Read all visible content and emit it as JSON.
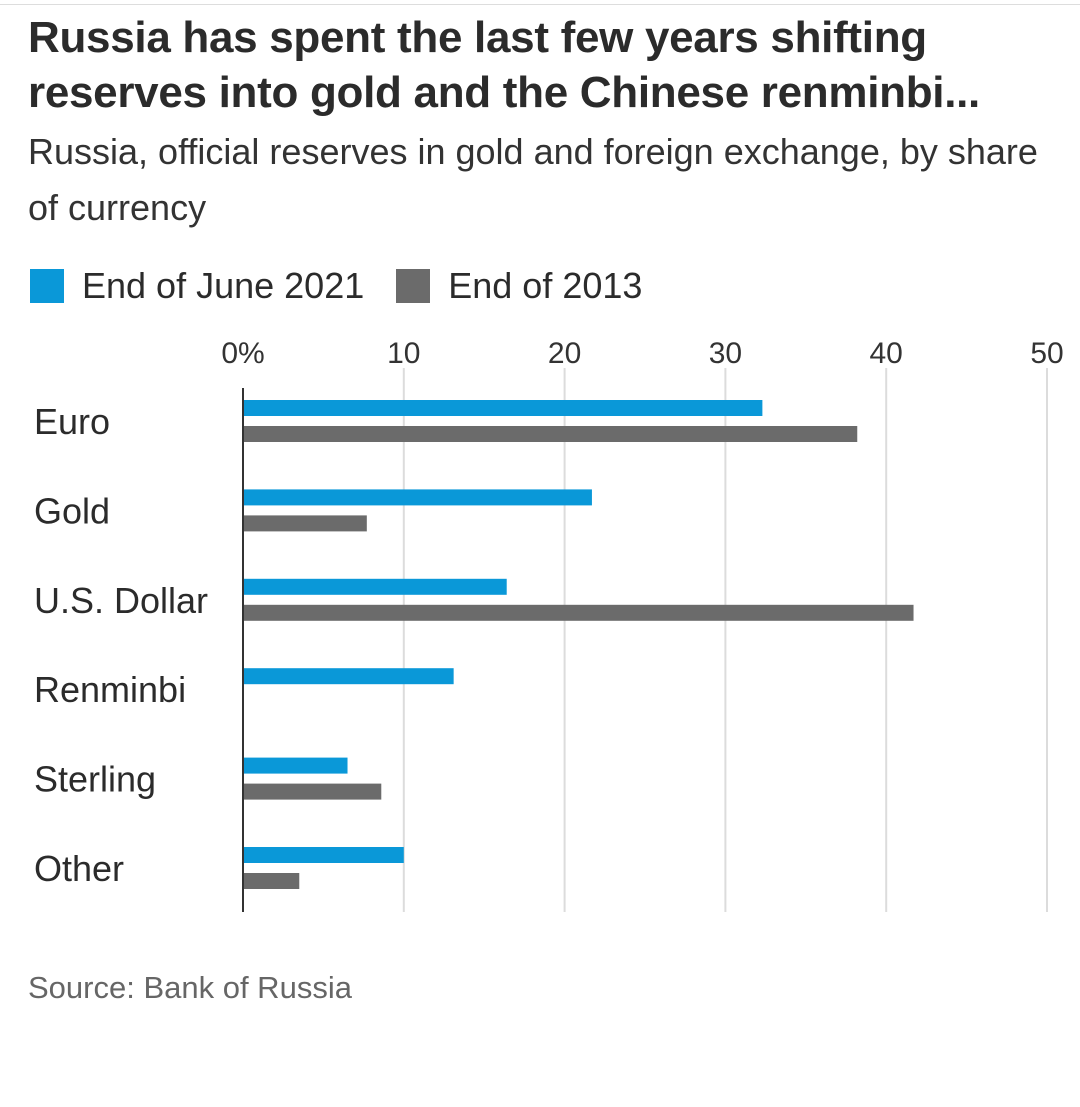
{
  "chart_data": {
    "type": "bar",
    "orientation": "horizontal",
    "title": "Russia has spent the last few years shifting reserves into gold and the Chinese renminbi...",
    "subtitle": "Russia, official reserves in gold and foreign exchange, by share of currency",
    "categories": [
      "Euro",
      "Gold",
      "U.S. Dollar",
      "Renminbi",
      "Sterling",
      "Other"
    ],
    "series": [
      {
        "name": "End of June 2021",
        "color": "#0a98d8",
        "values": [
          32.3,
          21.7,
          16.4,
          13.1,
          6.5,
          10.0
        ]
      },
      {
        "name": "End of 2013",
        "color": "#6b6b6b",
        "values": [
          38.2,
          7.7,
          41.7,
          null,
          8.6,
          3.5
        ]
      }
    ],
    "xlim": [
      0,
      50
    ],
    "ticks": [
      0,
      10,
      20,
      30,
      40,
      50
    ],
    "tick_labels": [
      "0%",
      "10",
      "20",
      "30",
      "40",
      "50"
    ],
    "grid": true,
    "legend_position": "top-left",
    "source": "Source: Bank of Russia"
  }
}
